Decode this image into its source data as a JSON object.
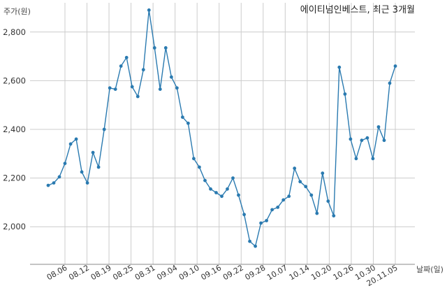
{
  "chart_data": {
    "type": "line",
    "title": "에이티넘인베스트, 최근 3개월",
    "ylabel": "주가(원)",
    "xlabel": "날짜(일)",
    "ylim": [
      1880,
      2920
    ],
    "yticks": [
      2000,
      2200,
      2400,
      2600,
      2800
    ],
    "ytick_labels": [
      "2,000",
      "2,200",
      "2,400",
      "2,600",
      "2,800"
    ],
    "xtick_labels": [
      "08.06",
      "08.12",
      "08.19",
      "08.25",
      "08.31",
      "09.04",
      "09.10",
      "09.16",
      "09.22",
      "09.28",
      "10.07",
      "10.14",
      "10.20",
      "10.26",
      "10.30",
      "20.11.05"
    ],
    "grid": true,
    "colors": {
      "line": "#2a7ab0",
      "grid": "#cccccc",
      "axis": "#888888"
    },
    "series": [
      {
        "values": [
          2170,
          2180,
          2205,
          2260,
          2340,
          2360,
          2225,
          2180,
          2305,
          2245,
          2400,
          2570,
          2565,
          2660,
          2695,
          2575,
          2535,
          2645,
          2890,
          2735,
          2565,
          2735,
          2615,
          2570,
          2450,
          2425,
          2280,
          2245,
          2190,
          2155,
          2140,
          2125,
          2155,
          2200,
          2130,
          2050,
          1940,
          1920,
          2015,
          2025,
          2070,
          2080,
          2110,
          2125,
          2240,
          2185,
          2165,
          2130,
          2055,
          2220,
          2105,
          2045,
          2655,
          2545,
          2360,
          2280,
          2355,
          2365,
          2280,
          2410,
          2355,
          2590,
          2660
        ]
      }
    ]
  }
}
